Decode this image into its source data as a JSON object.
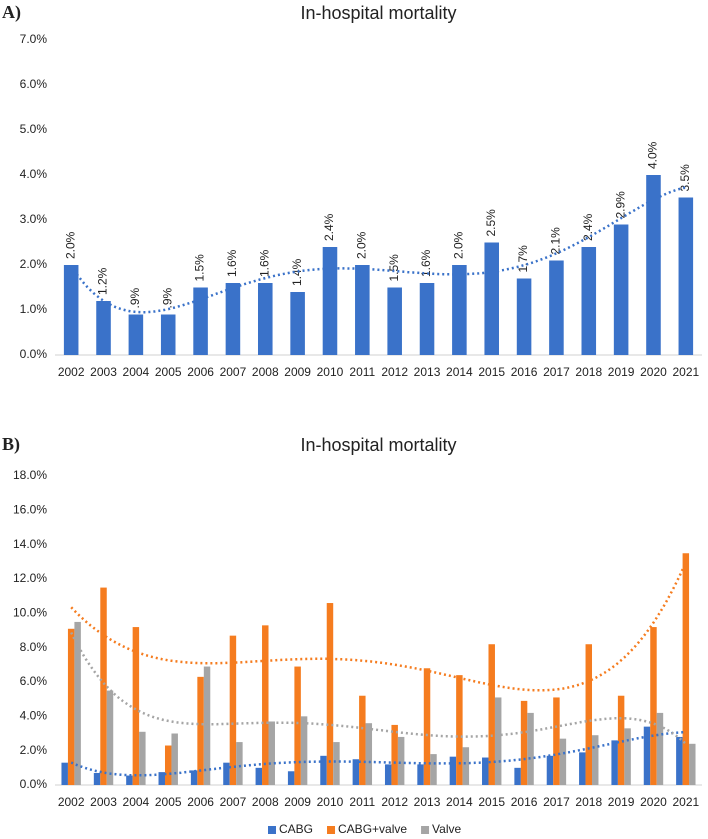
{
  "chart_data": [
    {
      "type": "bar",
      "panel_label": "A)",
      "title": "In-hospital mortality",
      "categories": [
        "2002",
        "2003",
        "2004",
        "2005",
        "2006",
        "2007",
        "2008",
        "2009",
        "2010",
        "2011",
        "2012",
        "2013",
        "2014",
        "2015",
        "2016",
        "2017",
        "2018",
        "2019",
        "2020",
        "2021"
      ],
      "values": [
        2.0,
        1.2,
        0.9,
        0.9,
        1.5,
        1.6,
        1.6,
        1.4,
        2.4,
        2.0,
        1.5,
        1.6,
        2.0,
        2.5,
        1.7,
        2.1,
        2.4,
        2.9,
        4.0,
        3.5
      ],
      "value_labels": [
        "2.0%",
        "1.2%",
        ".9%",
        ".9%",
        "1.5%",
        "1.6%",
        "1.6%",
        "1.4%",
        "2.4%",
        "2.0%",
        "1.5%",
        "1.6%",
        "2.0%",
        "2.5%",
        "1.7%",
        "2.1%",
        "2.4%",
        "2.9%",
        "4.0%",
        "3.5%"
      ],
      "color": "#3a72c9",
      "ylim": [
        0,
        7
      ],
      "yticks": [
        {
          "value": 0,
          "label": "0.0%"
        },
        {
          "value": 1,
          "label": "1.0%"
        },
        {
          "value": 2,
          "label": "2.0%"
        },
        {
          "value": 3,
          "label": "3.0%"
        },
        {
          "value": 4,
          "label": "4.0%"
        },
        {
          "value": 5,
          "label": "5.0%"
        },
        {
          "value": 6,
          "label": "6.0%"
        },
        {
          "value": 7,
          "label": "7.0%"
        }
      ],
      "trendline": true
    },
    {
      "type": "bar",
      "panel_label": "B)",
      "title": "In-hospital mortality",
      "categories": [
        "2002",
        "2003",
        "2004",
        "2005",
        "2006",
        "2007",
        "2008",
        "2009",
        "2010",
        "2011",
        "2012",
        "2013",
        "2014",
        "2015",
        "2016",
        "2017",
        "2018",
        "2019",
        "2020",
        "2021"
      ],
      "series": [
        {
          "name": "CABG",
          "color": "#3a72c9",
          "values": [
            1.3,
            0.7,
            0.55,
            0.75,
            0.85,
            1.3,
            1.0,
            0.8,
            1.7,
            1.5,
            1.2,
            1.2,
            1.65,
            1.6,
            1.0,
            1.7,
            1.9,
            2.6,
            3.4,
            2.8
          ]
        },
        {
          "name": "CABG+valve",
          "color": "#f57c1f",
          "values": [
            9.1,
            11.5,
            9.2,
            2.3,
            6.3,
            8.7,
            9.3,
            6.9,
            10.6,
            5.2,
            3.5,
            6.8,
            6.4,
            8.2,
            4.9,
            5.1,
            8.2,
            5.2,
            9.2,
            13.5
          ]
        },
        {
          "name": "Valve",
          "color": "#a5a5a5",
          "values": [
            9.5,
            5.5,
            3.1,
            3.0,
            6.9,
            2.5,
            3.7,
            4.0,
            2.5,
            3.6,
            2.8,
            1.8,
            2.2,
            5.1,
            4.2,
            2.7,
            2.9,
            3.3,
            4.2,
            2.4
          ]
        }
      ],
      "ylim": [
        0,
        18
      ],
      "yticks": [
        {
          "value": 0,
          "label": "0.0%"
        },
        {
          "value": 2,
          "label": "2.0%"
        },
        {
          "value": 4,
          "label": "4.0%"
        },
        {
          "value": 6,
          "label": "6.0%"
        },
        {
          "value": 8,
          "label": "8.0%"
        },
        {
          "value": 10,
          "label": "10.0%"
        },
        {
          "value": 12,
          "label": "12.0%"
        },
        {
          "value": 14,
          "label": "14.0%"
        },
        {
          "value": 16,
          "label": "16.0%"
        },
        {
          "value": 18,
          "label": "18.0%"
        }
      ],
      "trendline": true,
      "legend": "bottom"
    }
  ]
}
